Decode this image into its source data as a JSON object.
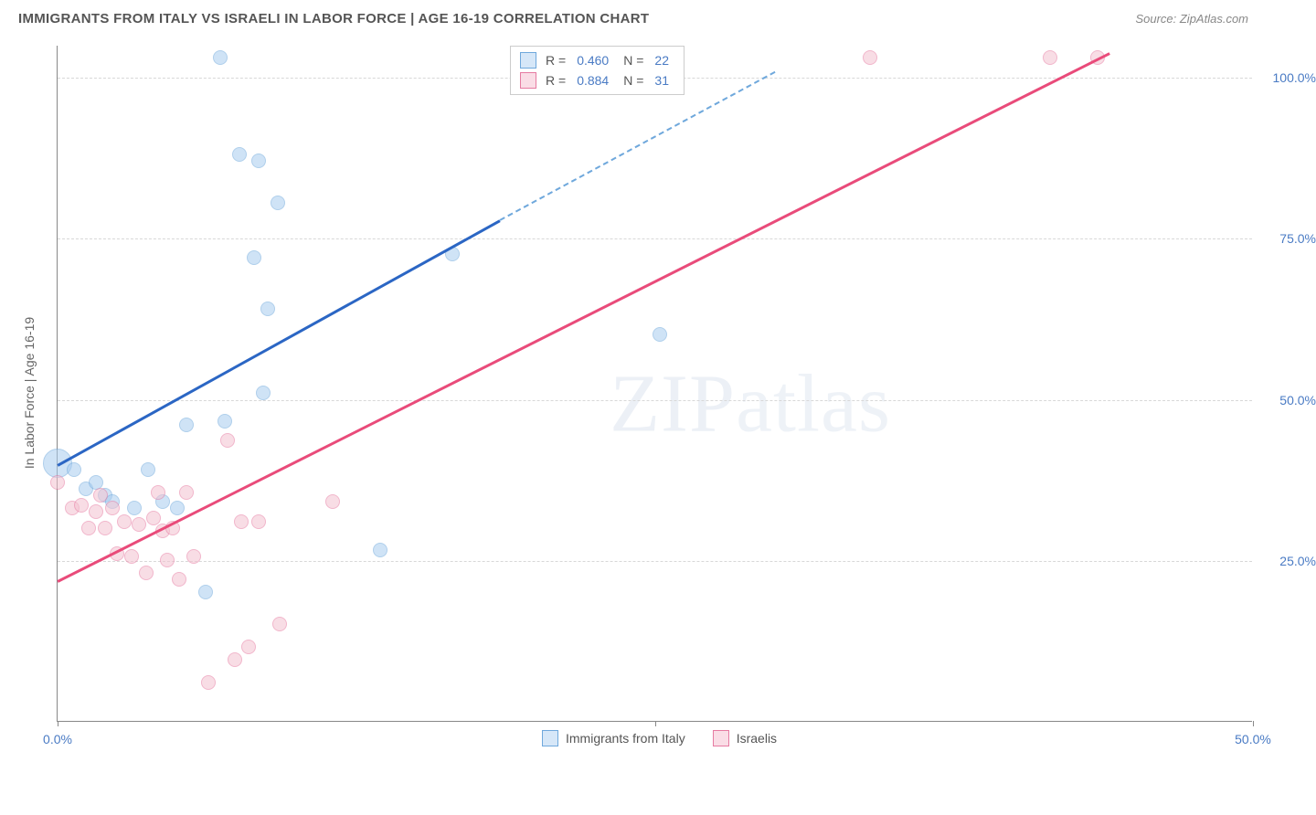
{
  "header": {
    "title": "IMMIGRANTS FROM ITALY VS ISRAELI IN LABOR FORCE | AGE 16-19 CORRELATION CHART",
    "source": "Source: ZipAtlas.com"
  },
  "chart": {
    "type": "scatter",
    "ylabel": "In Labor Force | Age 16-19",
    "xlim": [
      0,
      50
    ],
    "ylim": [
      0,
      105
    ],
    "xticks": [
      0,
      25,
      50
    ],
    "xtick_labels": [
      "0.0%",
      "",
      "50.0%"
    ],
    "yticks": [
      25,
      50,
      75,
      100
    ],
    "ytick_labels": [
      "25.0%",
      "50.0%",
      "75.0%",
      "100.0%"
    ],
    "grid_color": "#d8d8d8",
    "axis_color": "#888888",
    "background_color": "#ffffff",
    "label_fontsize": 14,
    "tick_fontsize": 14,
    "tick_color": "#4a7bc4",
    "marker_radius": 8,
    "marker_opacity": 0.55,
    "series": [
      {
        "name": "Immigrants from Italy",
        "color_fill": "#a9cdf0",
        "color_stroke": "#6fa8dc",
        "points": [
          {
            "x": 0.0,
            "y": 40.0,
            "r": 16
          },
          {
            "x": 0.7,
            "y": 39.0
          },
          {
            "x": 1.2,
            "y": 36.0
          },
          {
            "x": 1.6,
            "y": 37.0
          },
          {
            "x": 2.0,
            "y": 35.0
          },
          {
            "x": 2.3,
            "y": 34.0
          },
          {
            "x": 3.2,
            "y": 33.0
          },
          {
            "x": 3.8,
            "y": 39.0
          },
          {
            "x": 4.4,
            "y": 34.0
          },
          {
            "x": 5.0,
            "y": 33.0
          },
          {
            "x": 5.4,
            "y": 46.0
          },
          {
            "x": 6.2,
            "y": 20.0
          },
          {
            "x": 6.8,
            "y": 103.0
          },
          {
            "x": 7.0,
            "y": 46.5
          },
          {
            "x": 7.6,
            "y": 88.0
          },
          {
            "x": 8.2,
            "y": 72.0
          },
          {
            "x": 8.4,
            "y": 87.0
          },
          {
            "x": 8.6,
            "y": 51.0
          },
          {
            "x": 8.8,
            "y": 64.0
          },
          {
            "x": 9.2,
            "y": 80.5
          },
          {
            "x": 13.5,
            "y": 26.5
          },
          {
            "x": 16.5,
            "y": 72.5
          },
          {
            "x": 25.2,
            "y": 60.0
          }
        ],
        "trend": {
          "x1": 0,
          "y1": 40,
          "x2": 18.5,
          "y2": 78,
          "dash_to_x": 30,
          "dash_to_y": 101,
          "color": "#2b66c4"
        }
      },
      {
        "name": "Israelis",
        "color_fill": "#f4c3d0",
        "color_stroke": "#e67ba2",
        "points": [
          {
            "x": 0.0,
            "y": 37.0
          },
          {
            "x": 0.6,
            "y": 33.0
          },
          {
            "x": 1.0,
            "y": 33.5
          },
          {
            "x": 1.3,
            "y": 30.0
          },
          {
            "x": 1.6,
            "y": 32.5
          },
          {
            "x": 1.8,
            "y": 35.0
          },
          {
            "x": 2.0,
            "y": 30.0
          },
          {
            "x": 2.3,
            "y": 33.0
          },
          {
            "x": 2.5,
            "y": 26.0
          },
          {
            "x": 2.8,
            "y": 31.0
          },
          {
            "x": 3.1,
            "y": 25.5
          },
          {
            "x": 3.4,
            "y": 30.5
          },
          {
            "x": 3.7,
            "y": 23.0
          },
          {
            "x": 4.0,
            "y": 31.5
          },
          {
            "x": 4.2,
            "y": 35.5
          },
          {
            "x": 4.4,
            "y": 29.5
          },
          {
            "x": 4.6,
            "y": 25.0
          },
          {
            "x": 4.8,
            "y": 30.0
          },
          {
            "x": 5.1,
            "y": 22.0
          },
          {
            "x": 5.4,
            "y": 35.5
          },
          {
            "x": 5.7,
            "y": 25.5
          },
          {
            "x": 6.3,
            "y": 6.0
          },
          {
            "x": 7.1,
            "y": 43.5
          },
          {
            "x": 7.4,
            "y": 9.5
          },
          {
            "x": 7.7,
            "y": 31.0
          },
          {
            "x": 8.0,
            "y": 11.5
          },
          {
            "x": 8.4,
            "y": 31.0
          },
          {
            "x": 9.3,
            "y": 15.0
          },
          {
            "x": 11.5,
            "y": 34.0
          },
          {
            "x": 34.0,
            "y": 103.0
          },
          {
            "x": 41.5,
            "y": 103.0
          },
          {
            "x": 43.5,
            "y": 103.0
          }
        ],
        "trend": {
          "x1": 0,
          "y1": 22,
          "x2": 44,
          "y2": 104,
          "color": "#e94b7a"
        }
      }
    ],
    "legend_top": [
      {
        "swatch_fill": "#d6e7f8",
        "swatch_stroke": "#6fa8dc",
        "r": "0.460",
        "n": "22"
      },
      {
        "swatch_fill": "#fadde6",
        "swatch_stroke": "#e67ba2",
        "r": "0.884",
        "n": "31"
      }
    ],
    "legend_top_labels": {
      "r_prefix": "R =",
      "n_prefix": "N ="
    },
    "legend_bottom": [
      {
        "swatch_fill": "#d6e7f8",
        "swatch_stroke": "#6fa8dc",
        "label": "Immigrants from Italy"
      },
      {
        "swatch_fill": "#fadde6",
        "swatch_stroke": "#e67ba2",
        "label": "Israelis"
      }
    ],
    "watermark": "ZIPatlas"
  }
}
